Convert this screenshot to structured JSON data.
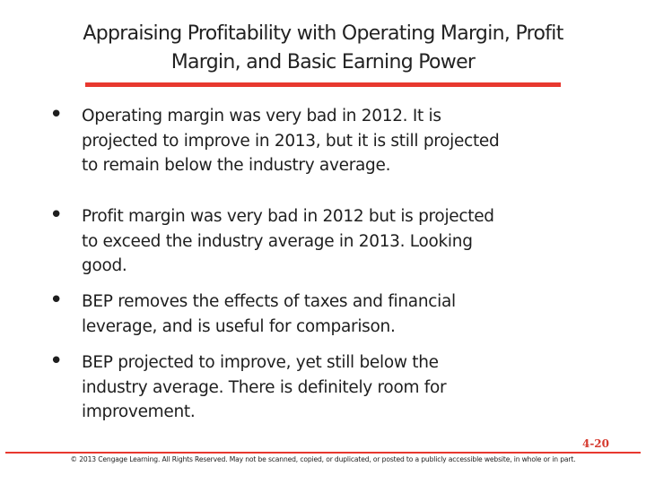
{
  "slide": {
    "title_line1": "Appraising Profitability with Operating Margin, Profit",
    "title_line2": "Margin, and Basic Earning Power",
    "bullet_symbol": "•",
    "bullets": [
      {
        "lines": [
          "Operating margin was very bad in 2012.  It is",
          "projected to improve in 2013, but it is still projected",
          "to remain below the industry average."
        ]
      },
      {
        "lines": [
          "Profit margin was very bad in 2012 but is projected",
          "to exceed the industry average in 2013.  Looking",
          "good."
        ]
      },
      {
        "lines": [
          "BEP removes the effects of taxes and financial",
          "leverage, and is useful for comparison."
        ]
      },
      {
        "lines": [
          "BEP projected to improve, yet still below the",
          "industry average.  There is definitely room for",
          "improvement."
        ]
      }
    ],
    "slide_number": "4-20",
    "copyright": "© 2013 Cengage Learning. All Rights Reserved. May not be scanned, copied, or duplicated, or posted to a publicly accessible website, in whole or in part."
  },
  "colors": {
    "accent": "#e8382f",
    "slide_number": "#d63a2f",
    "text": "#1e1e1e"
  }
}
